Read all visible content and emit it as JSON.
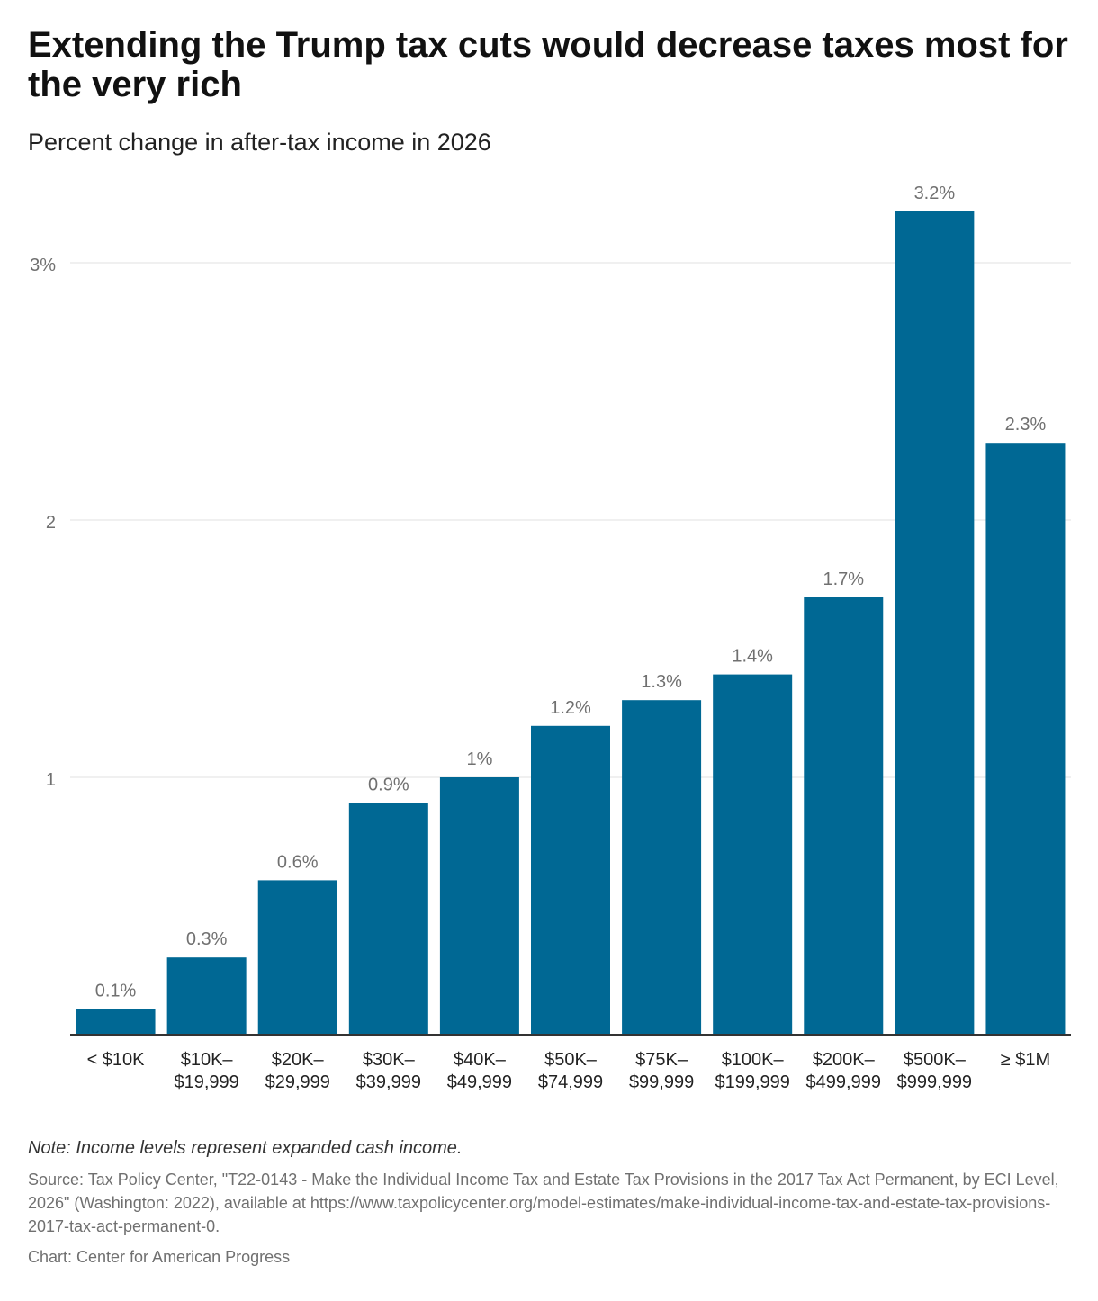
{
  "header": {
    "title": "Extending the Trump tax cuts would decrease taxes most for the very rich",
    "subtitle": "Percent change in after-tax income in 2026"
  },
  "chart_data": {
    "type": "bar",
    "title": "Extending the Trump tax cuts would decrease taxes most for the very rich",
    "subtitle": "Percent change in after-tax income in 2026",
    "categories": [
      [
        "< $10K"
      ],
      [
        "$10K–",
        "$19,999"
      ],
      [
        "$20K–",
        "$29,999"
      ],
      [
        "$30K–",
        "$39,999"
      ],
      [
        "$40K–",
        "$49,999"
      ],
      [
        "$50K–",
        "$74,999"
      ],
      [
        "$75K–",
        "$99,999"
      ],
      [
        "$100K–",
        "$199,999"
      ],
      [
        "$200K–",
        "$499,999"
      ],
      [
        "$500K–",
        "$999,999"
      ],
      [
        "≥ $1M"
      ]
    ],
    "values": [
      0.1,
      0.3,
      0.6,
      0.9,
      1.0,
      1.2,
      1.3,
      1.4,
      1.7,
      3.2,
      2.3
    ],
    "data_labels": [
      "0.1%",
      "0.3%",
      "0.6%",
      "0.9%",
      "1%",
      "1.2%",
      "1.3%",
      "1.4%",
      "1.7%",
      "3.2%",
      "2.3%"
    ],
    "ylim": [
      0,
      3.2
    ],
    "yticks": [
      {
        "value": 1,
        "label": "1"
      },
      {
        "value": 2,
        "label": "2"
      },
      {
        "value": 3,
        "label": "3%"
      }
    ],
    "xlabel": "",
    "ylabel": "",
    "grid": true,
    "bar_color": "#006894",
    "grid_color": "#e0e0e0",
    "axis_color": "#333333",
    "label_color": "#707070",
    "tick_label_color": "#222222"
  },
  "footer": {
    "note": "Note: Income levels represent expanded cash income.",
    "source": "Source: Tax Policy Center, \"T22-0143 - Make the Individual Income Tax and Estate Tax Provisions in the 2017 Tax Act Permanent, by ECI Level, 2026\" (Washington: 2022), available at https://www.taxpolicycenter.org/model-estimates/make-individual-income-tax-and-estate-tax-provisions-2017-tax-act-permanent-0.",
    "credit": "Chart: Center for American Progress"
  }
}
